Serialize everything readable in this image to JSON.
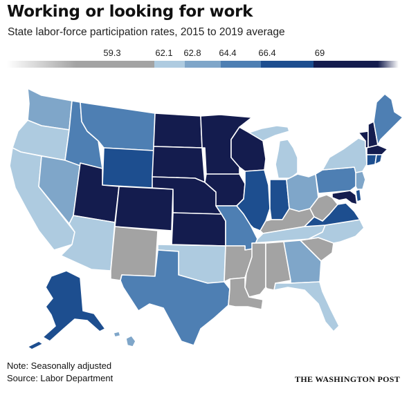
{
  "title": "Working or looking for work",
  "subtitle": "State labor-force participation rates, 2015 to 2019 average",
  "legend": {
    "ticks": [
      "59.3",
      "62.1",
      "62.8",
      "64.4",
      "66.4",
      "69"
    ],
    "colors": [
      "#a3a3a3",
      "#aecbe0",
      "#7fa6c9",
      "#4e7fb3",
      "#1d4e8f",
      "#141c4e"
    ]
  },
  "note": "Note: Seasonally adjusted",
  "source": "Source: Labor Department",
  "credit": "THE WASHINGTON POST"
}
